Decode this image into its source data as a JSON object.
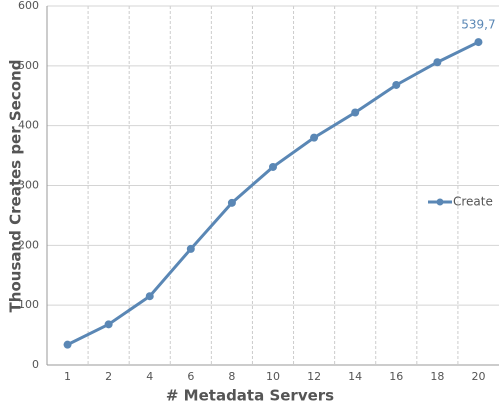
{
  "chart_data": {
    "type": "line",
    "x_label": "# Metadata Servers",
    "y_label": "Thousand Creates per Second",
    "categories": [
      "1",
      "2",
      "4",
      "6",
      "8",
      "10",
      "12",
      "14",
      "16",
      "18",
      "20"
    ],
    "series": [
      {
        "name": "Create",
        "color": "#5a87b5",
        "values": [
          34,
          68,
          115,
          194,
          271,
          331,
          380,
          422,
          468,
          506,
          539.7
        ],
        "value_labels": [
          null,
          null,
          null,
          null,
          null,
          null,
          null,
          null,
          null,
          null,
          "539,7"
        ]
      }
    ],
    "ylim": [
      0,
      600
    ],
    "yticks": [
      0,
      100,
      200,
      300,
      400,
      500,
      600
    ],
    "grid": true,
    "legend": "right"
  }
}
